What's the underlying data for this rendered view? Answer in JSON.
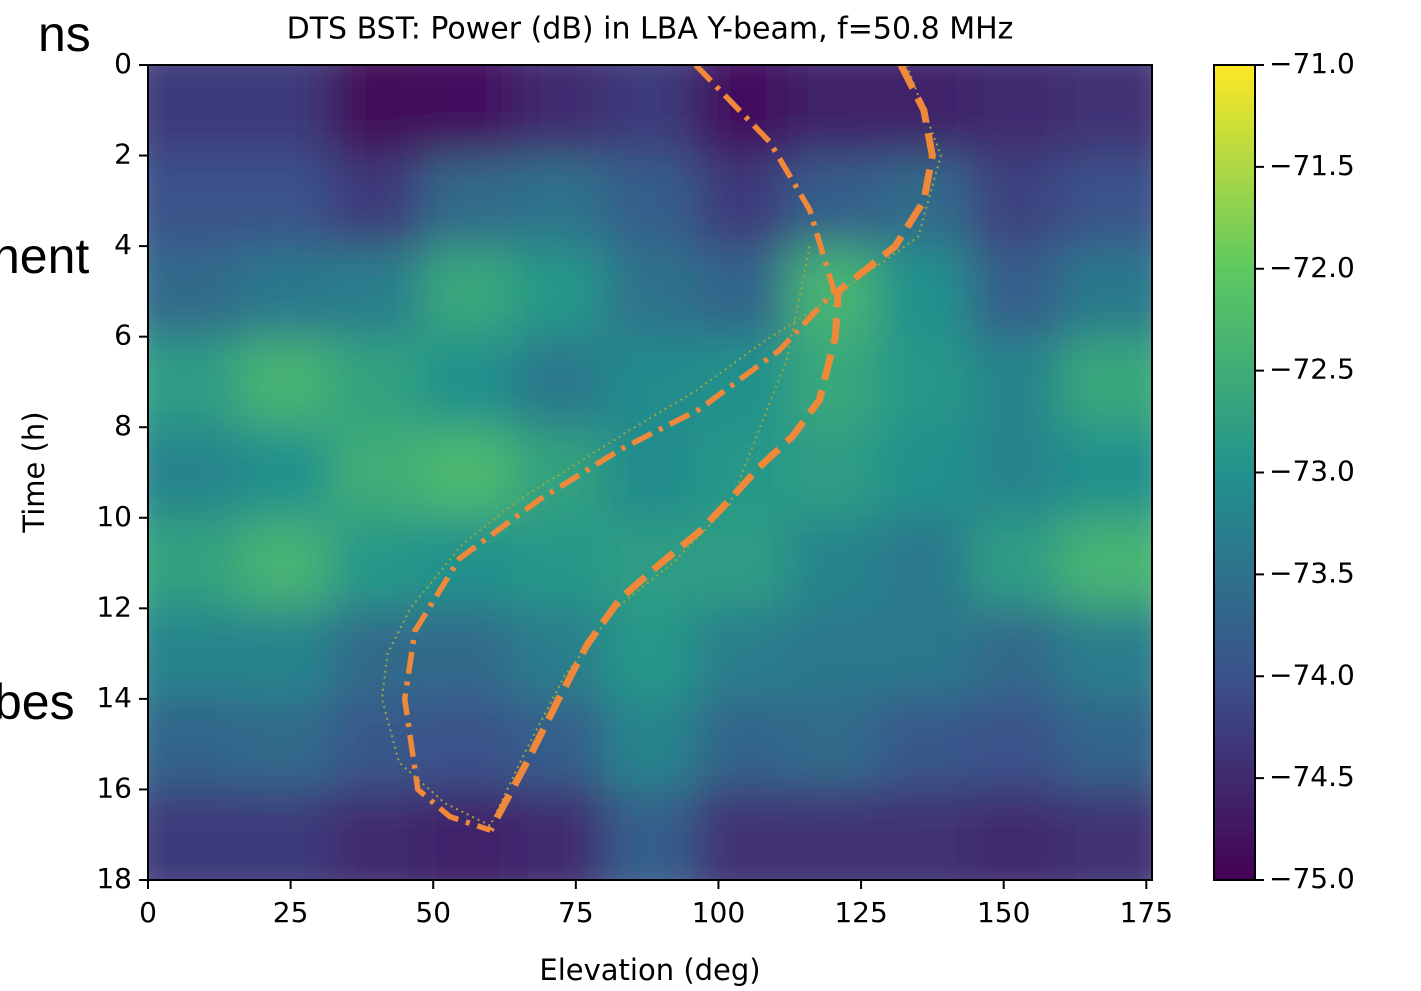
{
  "background_text": [
    "ns",
    "nent",
    "bes"
  ],
  "chart_data": {
    "type": "heatmap",
    "title": "DTS BST: Power (dB) in LBA Y-beam, f=50.8 MHz",
    "xlabel": "Elevation (deg)",
    "ylabel": "Time (h)",
    "xlim": [
      0,
      176
    ],
    "ylim": [
      18,
      0
    ],
    "xticks": [
      0,
      25,
      50,
      75,
      100,
      125,
      150,
      175
    ],
    "yticks": [
      0,
      2,
      4,
      6,
      8,
      10,
      12,
      14,
      16,
      18
    ],
    "heatmap": {
      "x_edges": [
        0,
        16,
        32,
        48,
        64,
        80,
        96,
        112,
        128,
        144,
        160,
        176
      ],
      "y_edges": [
        0,
        2,
        4,
        6,
        8,
        10,
        12,
        14,
        16,
        18
      ],
      "values": [
        [
          -74.3,
          -74.3,
          -74.9,
          -74.8,
          -74.5,
          -74.3,
          -74.8,
          -74.6,
          -74.6,
          -74.5,
          -74.4
        ],
        [
          -74.0,
          -74.0,
          -74.3,
          -73.6,
          -73.5,
          -73.8,
          -74.3,
          -73.8,
          -73.6,
          -74.2,
          -74.0
        ],
        [
          -73.6,
          -73.4,
          -73.3,
          -72.6,
          -72.9,
          -73.5,
          -73.7,
          -72.4,
          -73.0,
          -73.8,
          -73.4
        ],
        [
          -72.8,
          -72.4,
          -72.7,
          -73.0,
          -73.4,
          -73.1,
          -73.0,
          -72.6,
          -72.9,
          -73.2,
          -72.6
        ],
        [
          -73.2,
          -73.0,
          -72.5,
          -72.3,
          -72.7,
          -73.1,
          -72.9,
          -72.8,
          -73.0,
          -73.2,
          -73.0
        ],
        [
          -72.7,
          -72.4,
          -72.9,
          -73.0,
          -72.9,
          -72.8,
          -72.8,
          -73.2,
          -73.4,
          -72.8,
          -72.4
        ],
        [
          -73.2,
          -73.2,
          -73.6,
          -73.6,
          -73.3,
          -72.9,
          -73.3,
          -73.4,
          -73.4,
          -73.6,
          -73.3
        ],
        [
          -73.7,
          -73.6,
          -73.9,
          -74.0,
          -73.8,
          -73.2,
          -73.7,
          -73.6,
          -73.9,
          -74.0,
          -73.7
        ],
        [
          -74.3,
          -74.3,
          -74.5,
          -74.6,
          -74.5,
          -73.8,
          -74.4,
          -74.4,
          -74.4,
          -74.5,
          -74.4
        ]
      ]
    },
    "colormap": [
      "#440154",
      "#3b528b",
      "#21918c",
      "#5ec962",
      "#fde725"
    ],
    "clim": [
      -75.0,
      -71.0
    ],
    "cticks": [
      {
        "value": -71.0,
        "label": "−71.0"
      },
      {
        "value": -71.5,
        "label": "−71.5"
      },
      {
        "value": -72.0,
        "label": "−72.0"
      },
      {
        "value": -72.5,
        "label": "−72.5"
      },
      {
        "value": -73.0,
        "label": "−73.0"
      },
      {
        "value": -73.5,
        "label": "−73.5"
      },
      {
        "value": -74.0,
        "label": "−74.0"
      },
      {
        "value": -74.5,
        "label": "−74.5"
      },
      {
        "value": -75.0,
        "label": "−75.0"
      }
    ],
    "series": [
      {
        "color": "#f0883a",
        "linestyle": "dotted",
        "x": [
          133,
          139,
          135,
          126,
          118,
          108,
          96,
          84,
          74,
          65,
          55,
          46,
          42,
          41,
          44,
          52,
          60,
          66,
          73,
          82,
          92,
          102,
          112,
          116
        ],
        "y": [
          0,
          2,
          3.8,
          4.6,
          5.3,
          6.1,
          7.2,
          8.1,
          8.9,
          9.6,
          10.6,
          12.0,
          13.0,
          14.0,
          15.4,
          16.3,
          16.8,
          15.2,
          13.5,
          12.0,
          11.0,
          9.7,
          6.5,
          4.0
        ]
      },
      {
        "color": "#f0883a",
        "linestyle": "dashed",
        "x": [
          132,
          136,
          137.5,
          136,
          131,
          121,
          120.5,
          117.7,
          113,
          107,
          102,
          96.7,
          89,
          82.7,
          77,
          72,
          66,
          60
        ],
        "y": [
          0,
          1,
          2,
          3,
          4,
          5,
          6,
          7.4,
          8.2,
          8.9,
          9.6,
          10.3,
          11.1,
          11.8,
          12.8,
          14,
          15.5,
          16.9
        ]
      },
      {
        "color": "#f0883a",
        "linestyle": "dashdot",
        "x": [
          96,
          109,
          116,
          120.3,
          110.7,
          96.7,
          82.7,
          68.6,
          54.6,
          46.8,
          45,
          47.3,
          52.9,
          60
        ],
        "y": [
          0,
          1.7,
          3.2,
          5,
          6.3,
          7.6,
          8.5,
          9.6,
          10.9,
          12.5,
          14,
          16,
          16.6,
          16.9
        ]
      }
    ]
  }
}
